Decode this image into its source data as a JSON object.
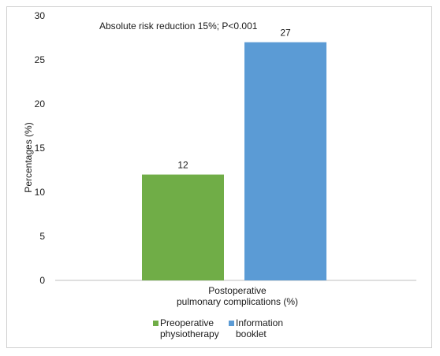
{
  "chart_data": {
    "type": "bar",
    "categories": [
      "Postoperative pulmonary complications (%)"
    ],
    "category_label_lines": [
      "Postoperative",
      "pulmonary complications (%)"
    ],
    "series": [
      {
        "name": "Preoperative physiotherapy",
        "name_lines": [
          "Preoperative",
          "physiotherapy"
        ],
        "values": [
          12
        ],
        "color": "#70ad47"
      },
      {
        "name": "Information booklet",
        "name_lines": [
          "Information",
          "booklet"
        ],
        "values": [
          27
        ],
        "color": "#5b9bd5"
      }
    ],
    "data_labels": [
      "12",
      "27"
    ],
    "annotation": "Absolute risk reduction 15%; P<0.001",
    "xlabel": "",
    "ylabel": "Percentages (%)",
    "ylim": [
      0,
      30
    ],
    "yticks": [
      0,
      5,
      10,
      15,
      20,
      25,
      30
    ],
    "grid": false,
    "legend": "bottom"
  }
}
